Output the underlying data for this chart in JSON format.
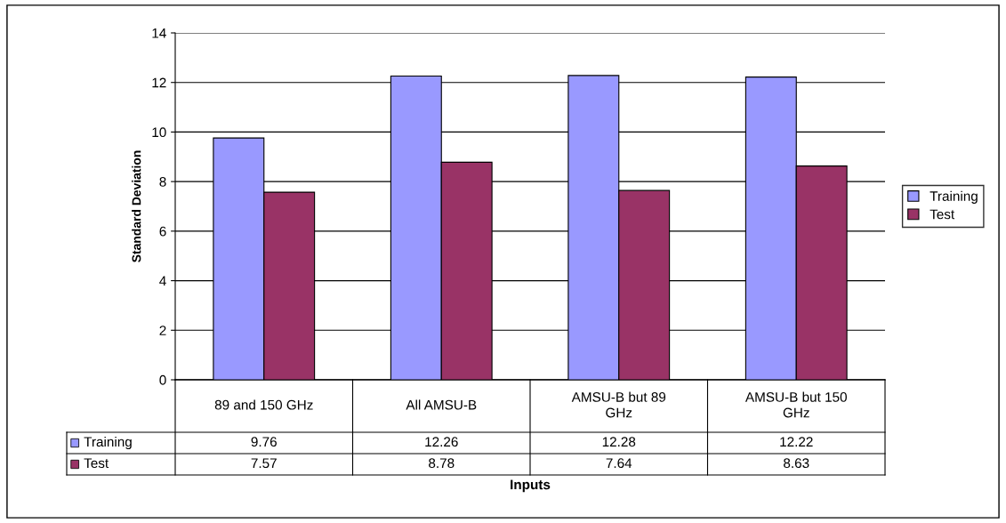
{
  "chart_data": {
    "type": "bar",
    "xlabel": "Inputs",
    "ylabel": "Standard Deviation",
    "categories": [
      "89 and 150 GHz",
      "All AMSU-B",
      "AMSU-B but 89 GHz",
      "AMSU-B but 150 GHz"
    ],
    "series": [
      {
        "name": "Training",
        "color": "#9999ff",
        "values": [
          9.76,
          12.26,
          12.28,
          12.22
        ]
      },
      {
        "name": "Test",
        "color": "#993366",
        "values": [
          7.57,
          8.78,
          7.64,
          8.63
        ]
      }
    ],
    "ylim": [
      0,
      14
    ],
    "yticks": [
      0,
      2,
      4,
      6,
      8,
      10,
      12,
      14
    ],
    "grid": "y",
    "legend": "right",
    "data_labels": true
  }
}
